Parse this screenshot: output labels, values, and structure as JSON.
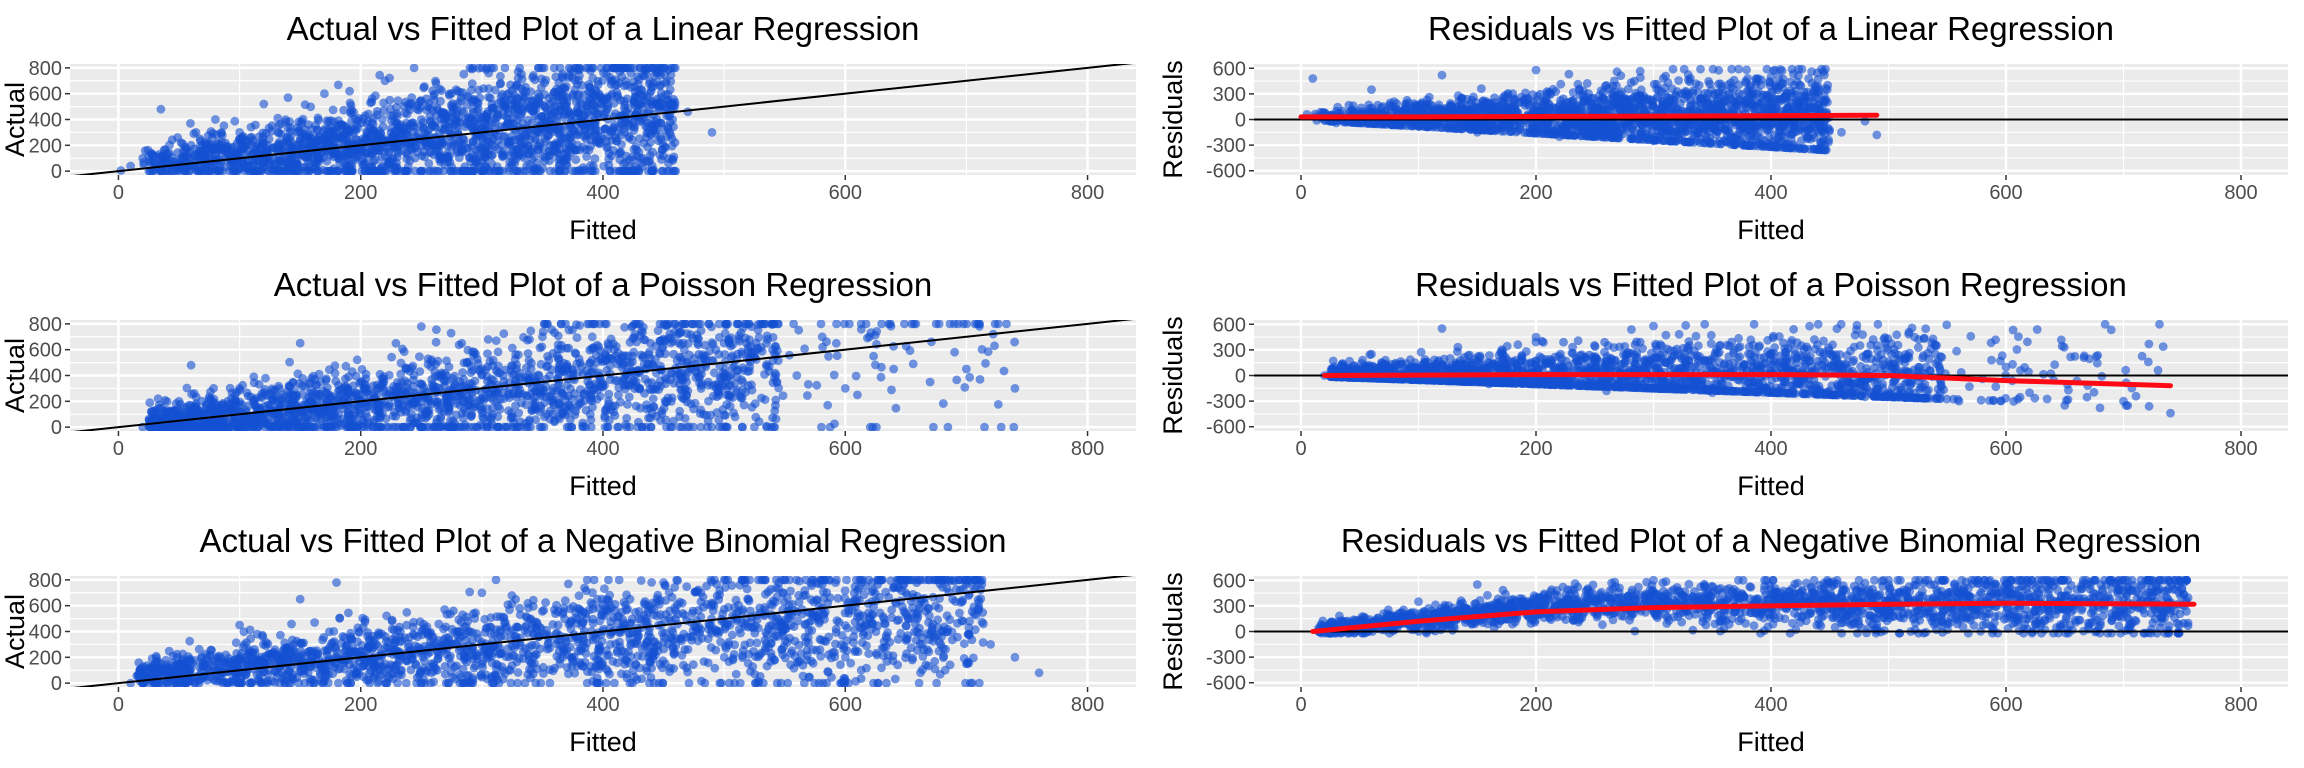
{
  "colors": {
    "background": "#ffffff",
    "panel_background": "#ebebeb",
    "grid": "#ffffff",
    "points": "#1450d2",
    "reference_line": "#000000",
    "smooth_line": "#ff0a14",
    "tick_text": "#4d4d4d"
  },
  "chart_data": [
    {
      "id": "lin_avf",
      "type": "scatter",
      "title": "Actual vs Fitted Plot of a Linear Regression",
      "xlabel": "Fitted",
      "ylabel": "Actual",
      "xlim": [
        -40,
        840
      ],
      "ylim": [
        -30,
        830
      ],
      "xticks": [
        0,
        200,
        400,
        600,
        800
      ],
      "yticks": [
        0,
        200,
        400,
        600,
        800
      ],
      "yticks_minor": [
        100,
        300,
        500,
        700
      ],
      "reference_line": {
        "kind": "y=x",
        "color": "#000000"
      },
      "points_summary": {
        "n_points": 6000,
        "x_range": [
          0,
          490
        ],
        "y_range": [
          0,
          800
        ]
      },
      "points": [
        [
          2,
          5
        ],
        [
          10,
          40
        ],
        [
          20,
          100
        ],
        [
          35,
          480
        ],
        [
          60,
          200
        ],
        [
          80,
          400
        ],
        [
          100,
          300
        ],
        [
          120,
          520
        ],
        [
          150,
          250
        ],
        [
          170,
          600
        ],
        [
          200,
          150
        ],
        [
          220,
          700
        ],
        [
          250,
          400
        ],
        [
          280,
          620
        ],
        [
          300,
          300
        ],
        [
          330,
          770
        ],
        [
          360,
          500
        ],
        [
          380,
          800
        ],
        [
          400,
          250
        ],
        [
          420,
          560
        ],
        [
          440,
          650
        ],
        [
          455,
          430
        ],
        [
          470,
          460
        ],
        [
          490,
          300
        ]
      ]
    },
    {
      "id": "lin_rvf",
      "type": "scatter",
      "title": "Residuals vs Fitted Plot of a Linear Regression",
      "xlabel": "Fitted",
      "ylabel": "Residuals",
      "xlim": [
        -40,
        840
      ],
      "ylim": [
        -650,
        650
      ],
      "xticks": [
        0,
        200,
        400,
        600,
        800
      ],
      "yticks": [
        -600,
        -300,
        0,
        300,
        600
      ],
      "yticks_minor": [
        -450,
        -150,
        150,
        450
      ],
      "reference_line": {
        "kind": "y=0",
        "color": "#000000"
      },
      "smooth": {
        "color": "#ff0a14",
        "x": [
          0,
          100,
          200,
          300,
          400,
          490
        ],
        "y": [
          30,
          30,
          35,
          40,
          45,
          50
        ]
      },
      "points_summary": {
        "n_points": 6000,
        "x_range": [
          0,
          490
        ],
        "y_range": [
          -320,
          590
        ]
      },
      "points": [
        [
          5,
          60
        ],
        [
          10,
          480
        ],
        [
          30,
          -40
        ],
        [
          60,
          350
        ],
        [
          100,
          -80
        ],
        [
          120,
          520
        ],
        [
          150,
          -150
        ],
        [
          200,
          580
        ],
        [
          220,
          -200
        ],
        [
          260,
          400
        ],
        [
          300,
          -250
        ],
        [
          340,
          590
        ],
        [
          380,
          -280
        ],
        [
          400,
          500
        ],
        [
          420,
          -320
        ],
        [
          440,
          470
        ],
        [
          460,
          -150
        ],
        [
          480,
          -20
        ],
        [
          490,
          -180
        ]
      ]
    },
    {
      "id": "pois_avf",
      "type": "scatter",
      "title": "Actual vs Fitted Plot of a Poisson Regression",
      "xlabel": "Fitted",
      "ylabel": "Actual",
      "xlim": [
        -40,
        840
      ],
      "ylim": [
        -30,
        830
      ],
      "xticks": [
        0,
        200,
        400,
        600,
        800
      ],
      "yticks": [
        0,
        200,
        400,
        600,
        800
      ],
      "yticks_minor": [
        100,
        300,
        500,
        700
      ],
      "reference_line": {
        "kind": "y=x",
        "color": "#000000"
      },
      "points_summary": {
        "n_points": 6000,
        "x_range": [
          20,
          740
        ],
        "y_range": [
          0,
          800
        ]
      },
      "points": [
        [
          20,
          0
        ],
        [
          50,
          200
        ],
        [
          60,
          480
        ],
        [
          100,
          300
        ],
        [
          150,
          650
        ],
        [
          200,
          350
        ],
        [
          250,
          780
        ],
        [
          300,
          450
        ],
        [
          350,
          700
        ],
        [
          420,
          500
        ],
        [
          450,
          800
        ],
        [
          500,
          650
        ],
        [
          540,
          600
        ],
        [
          560,
          400
        ],
        [
          580,
          800
        ],
        [
          600,
          300
        ],
        [
          610,
          250
        ],
        [
          620,
          700
        ],
        [
          640,
          450
        ],
        [
          670,
          350
        ],
        [
          700,
          450
        ],
        [
          740,
          300
        ]
      ]
    },
    {
      "id": "pois_rvf",
      "type": "scatter",
      "title": "Residuals vs Fitted Plot of a Poisson Regression",
      "xlabel": "Fitted",
      "ylabel": "Residuals",
      "xlim": [
        -40,
        840
      ],
      "ylim": [
        -650,
        650
      ],
      "xticks": [
        0,
        200,
        400,
        600,
        800
      ],
      "yticks": [
        -600,
        -300,
        0,
        300,
        600
      ],
      "yticks_minor": [
        -450,
        -150,
        150,
        450
      ],
      "reference_line": {
        "kind": "y=0",
        "color": "#000000"
      },
      "smooth": {
        "color": "#ff0a14",
        "x": [
          20,
          200,
          400,
          500,
          600,
          740
        ],
        "y": [
          0,
          10,
          10,
          0,
          -60,
          -120
        ]
      },
      "points_summary": {
        "n_points": 6000,
        "x_range": [
          20,
          740
        ],
        "y_range": [
          -480,
          600
        ]
      },
      "points": [
        [
          20,
          0
        ],
        [
          60,
          250
        ],
        [
          120,
          550
        ],
        [
          160,
          -100
        ],
        [
          200,
          450
        ],
        [
          260,
          -180
        ],
        [
          300,
          580
        ],
        [
          350,
          -200
        ],
        [
          420,
          300
        ],
        [
          480,
          -250
        ],
        [
          540,
          250
        ],
        [
          560,
          -300
        ],
        [
          600,
          100
        ],
        [
          620,
          -200
        ],
        [
          650,
          -350
        ],
        [
          680,
          -380
        ],
        [
          700,
          -300
        ],
        [
          740,
          -440
        ]
      ]
    },
    {
      "id": "nb_avf",
      "type": "scatter",
      "title": "Actual vs Fitted Plot of a Negative Binomial Regression",
      "xlabel": "Fitted",
      "ylabel": "Actual",
      "xlim": [
        -40,
        840
      ],
      "ylim": [
        -30,
        830
      ],
      "xticks": [
        0,
        200,
        400,
        600,
        800
      ],
      "yticks": [
        0,
        200,
        400,
        600,
        800
      ],
      "yticks_minor": [
        100,
        300,
        500,
        700
      ],
      "reference_line": {
        "kind": "y=x",
        "color": "#000000"
      },
      "points_summary": {
        "n_points": 6000,
        "x_range": [
          10,
          760
        ],
        "y_range": [
          0,
          800
        ]
      },
      "points": [
        [
          10,
          0
        ],
        [
          50,
          150
        ],
        [
          100,
          450
        ],
        [
          150,
          650
        ],
        [
          180,
          780
        ],
        [
          250,
          400
        ],
        [
          300,
          700
        ],
        [
          400,
          550
        ],
        [
          450,
          780
        ],
        [
          520,
          650
        ],
        [
          580,
          800
        ],
        [
          600,
          200
        ],
        [
          620,
          500
        ],
        [
          650,
          700
        ],
        [
          680,
          400
        ],
        [
          700,
          150
        ],
        [
          720,
          300
        ],
        [
          740,
          200
        ],
        [
          760,
          80
        ]
      ]
    },
    {
      "id": "nb_rvf",
      "type": "scatter",
      "title": "Residuals vs Fitted Plot of a Negative Binomial Regression",
      "xlabel": "Fitted",
      "ylabel": "Residuals",
      "xlim": [
        -40,
        840
      ],
      "ylim": [
        -650,
        650
      ],
      "xticks": [
        0,
        200,
        400,
        600,
        800
      ],
      "yticks": [
        -600,
        -300,
        0,
        300,
        600
      ],
      "yticks_minor": [
        -450,
        -150,
        150,
        450
      ],
      "reference_line": {
        "kind": "y=0",
        "color": "#000000"
      },
      "smooth": {
        "color": "#ff0a14",
        "x": [
          10,
          100,
          200,
          300,
          400,
          500,
          600,
          760
        ],
        "y": [
          0,
          120,
          230,
          280,
          300,
          320,
          330,
          320
        ]
      },
      "points_summary": {
        "n_points": 6000,
        "x_range": [
          10,
          760
        ],
        "y_range": [
          -20,
          600
        ]
      },
      "points": [
        [
          15,
          0
        ],
        [
          50,
          80
        ],
        [
          100,
          350
        ],
        [
          150,
          550
        ],
        [
          200,
          400
        ],
        [
          300,
          600
        ],
        [
          400,
          500
        ],
        [
          500,
          600
        ],
        [
          600,
          550
        ],
        [
          650,
          420
        ],
        [
          700,
          380
        ],
        [
          720,
          350
        ],
        [
          740,
          250
        ],
        [
          755,
          100
        ]
      ]
    }
  ]
}
